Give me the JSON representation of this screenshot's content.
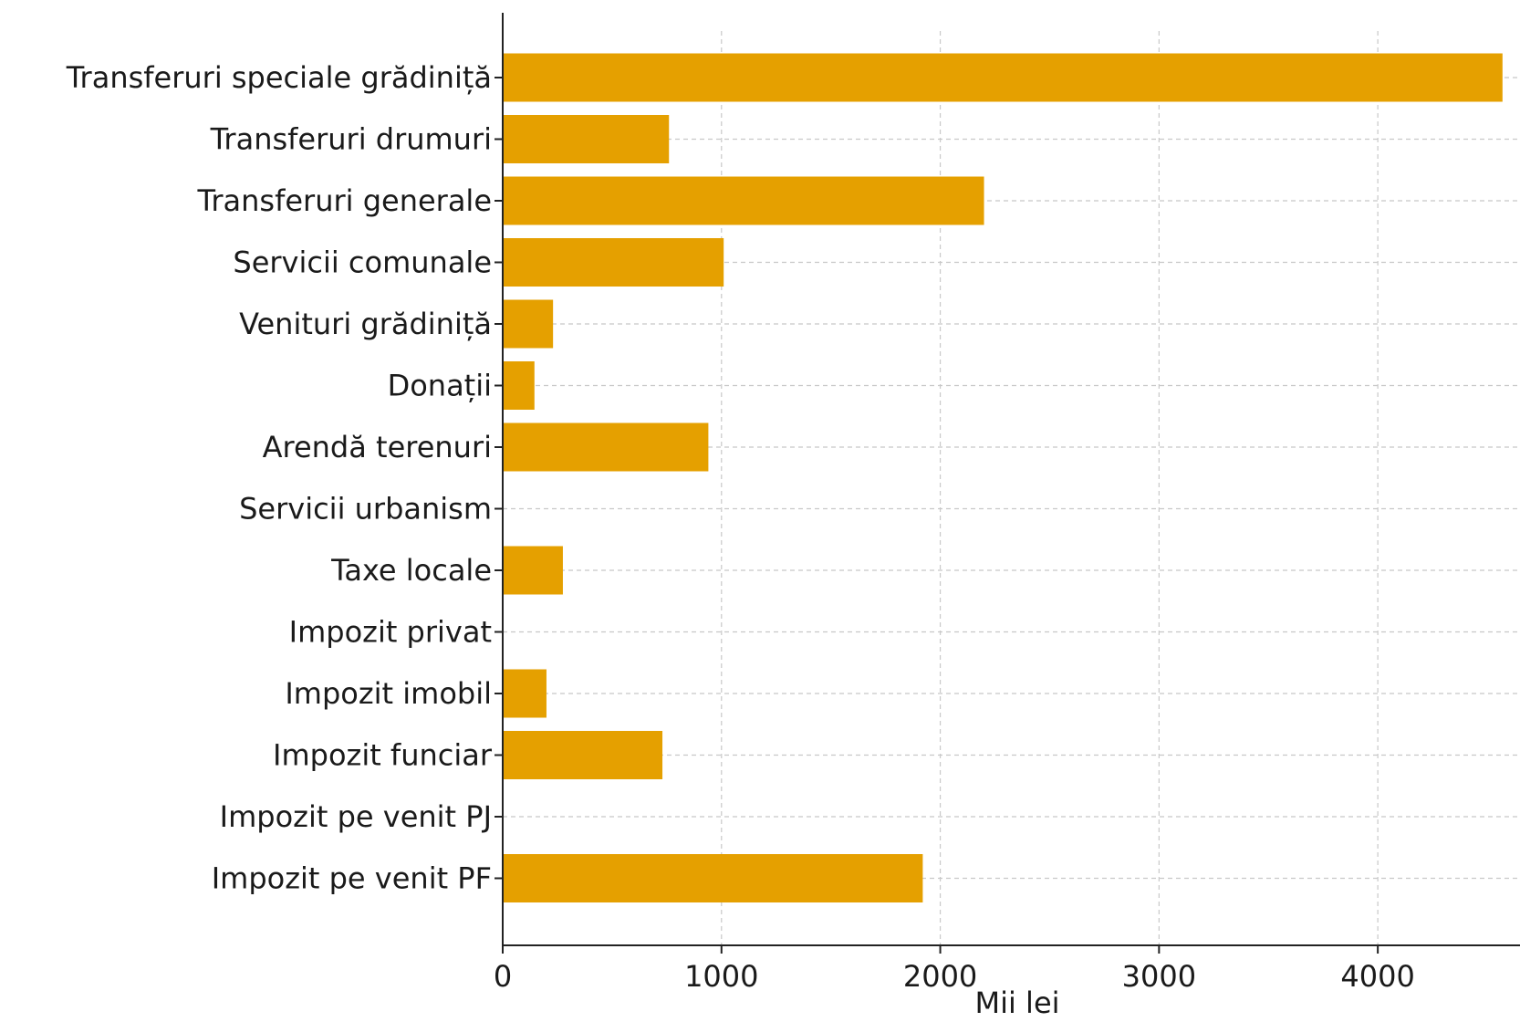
{
  "chart_data": {
    "type": "bar",
    "orientation": "horizontal",
    "title": "",
    "xlabel": "Mii lei",
    "ylabel": "",
    "xlim": [
      0,
      4650
    ],
    "xticks": [
      0,
      1000,
      2000,
      3000,
      4000
    ],
    "grid": true,
    "bar_color": "#E5A000",
    "categories": [
      "Transferuri speciale grădiniță",
      "Transferuri drumuri",
      "Transferuri generale",
      "Servicii comunale",
      "Venituri grădiniță",
      "Donații",
      "Arendă terenuri",
      "Servicii urbanism",
      "Taxe locale",
      "Impozit privat",
      "Impozit imobil",
      "Impozit funciar",
      "Impozit pe venit PJ",
      "Impozit pe venit PF"
    ],
    "values": [
      4570,
      760,
      2200,
      1010,
      230,
      145,
      940,
      0,
      275,
      0,
      200,
      730,
      0,
      1920
    ]
  }
}
